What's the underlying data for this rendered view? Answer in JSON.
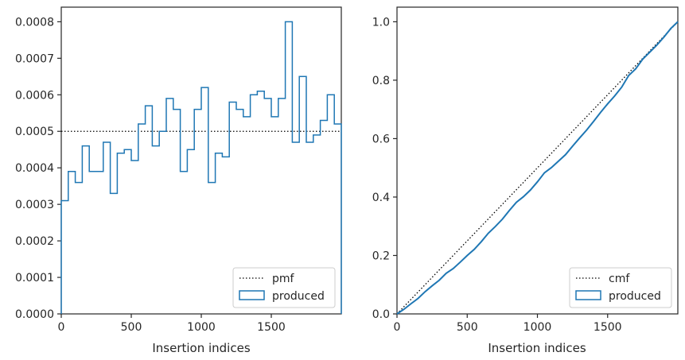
{
  "chart_data": [
    {
      "type": "step-histogram",
      "xlabel": "Insertion indices",
      "ylabel": "",
      "xlim": [
        0,
        2000
      ],
      "ylim": [
        0,
        0.00084
      ],
      "xticks": [
        0,
        500,
        1000,
        1500
      ],
      "yticks": [
        0,
        0.0001,
        0.0002,
        0.0003,
        0.0004,
        0.0005,
        0.0006,
        0.0007,
        0.0008
      ],
      "ytick_labels": [
        "0.0000",
        "0.0001",
        "0.0002",
        "0.0003",
        "0.0004",
        "0.0005",
        "0.0006",
        "0.0007",
        "0.0008"
      ],
      "xtick_labels": [
        "0",
        "500",
        "1000",
        "1500"
      ],
      "legend_position": "lower-right",
      "reference": {
        "name": "pmf",
        "value": 0.0005,
        "style": "dotted",
        "color": "#000000"
      },
      "histogram": {
        "name": "produced",
        "color": "#1f77b4",
        "bin_width": 50,
        "values": [
          0.00031,
          0.00039,
          0.00036,
          0.00046,
          0.00039,
          0.00039,
          0.00047,
          0.00033,
          0.00044,
          0.00045,
          0.00042,
          0.00052,
          0.00057,
          0.00046,
          0.0005,
          0.00059,
          0.00056,
          0.00039,
          0.00045,
          0.00056,
          0.00062,
          0.00036,
          0.00044,
          0.00043,
          0.00058,
          0.00056,
          0.00054,
          0.0006,
          0.00061,
          0.00059,
          0.00054,
          0.00059,
          0.0008,
          0.00047,
          0.00065,
          0.00047,
          0.00049,
          0.00053,
          0.0006,
          0.00052
        ]
      }
    },
    {
      "type": "line",
      "xlabel": "Insertion indices",
      "ylabel": "",
      "xlim": [
        0,
        2000
      ],
      "ylim": [
        0,
        1.05
      ],
      "xticks": [
        0,
        500,
        1000,
        1500
      ],
      "yticks": [
        0,
        0.2,
        0.4,
        0.6,
        0.8,
        1.0
      ],
      "ytick_labels": [
        "0.0",
        "0.2",
        "0.4",
        "0.6",
        "0.8",
        "1.0"
      ],
      "xtick_labels": [
        "0",
        "500",
        "1000",
        "1500"
      ],
      "legend_position": "lower-right",
      "reference": {
        "name": "cmf",
        "points": [
          [
            0,
            0
          ],
          [
            2000,
            1
          ]
        ],
        "style": "dotted",
        "color": "#000000"
      },
      "series": {
        "name": "produced",
        "color": "#1f77b4",
        "x": [
          0,
          50,
          100,
          150,
          200,
          250,
          300,
          350,
          400,
          450,
          500,
          550,
          600,
          650,
          700,
          750,
          800,
          850,
          900,
          950,
          1000,
          1050,
          1100,
          1150,
          1200,
          1250,
          1300,
          1350,
          1400,
          1450,
          1500,
          1550,
          1600,
          1650,
          1700,
          1750,
          1800,
          1850,
          1900,
          1950,
          2000
        ],
        "y": [
          0,
          0.016,
          0.035,
          0.053,
          0.076,
          0.096,
          0.115,
          0.139,
          0.155,
          0.177,
          0.2,
          0.221,
          0.247,
          0.276,
          0.299,
          0.324,
          0.354,
          0.382,
          0.401,
          0.424,
          0.452,
          0.483,
          0.501,
          0.523,
          0.545,
          0.574,
          0.602,
          0.629,
          0.659,
          0.69,
          0.719,
          0.746,
          0.776,
          0.816,
          0.839,
          0.872,
          0.896,
          0.92,
          0.947,
          0.977,
          1.0
        ]
      }
    }
  ]
}
